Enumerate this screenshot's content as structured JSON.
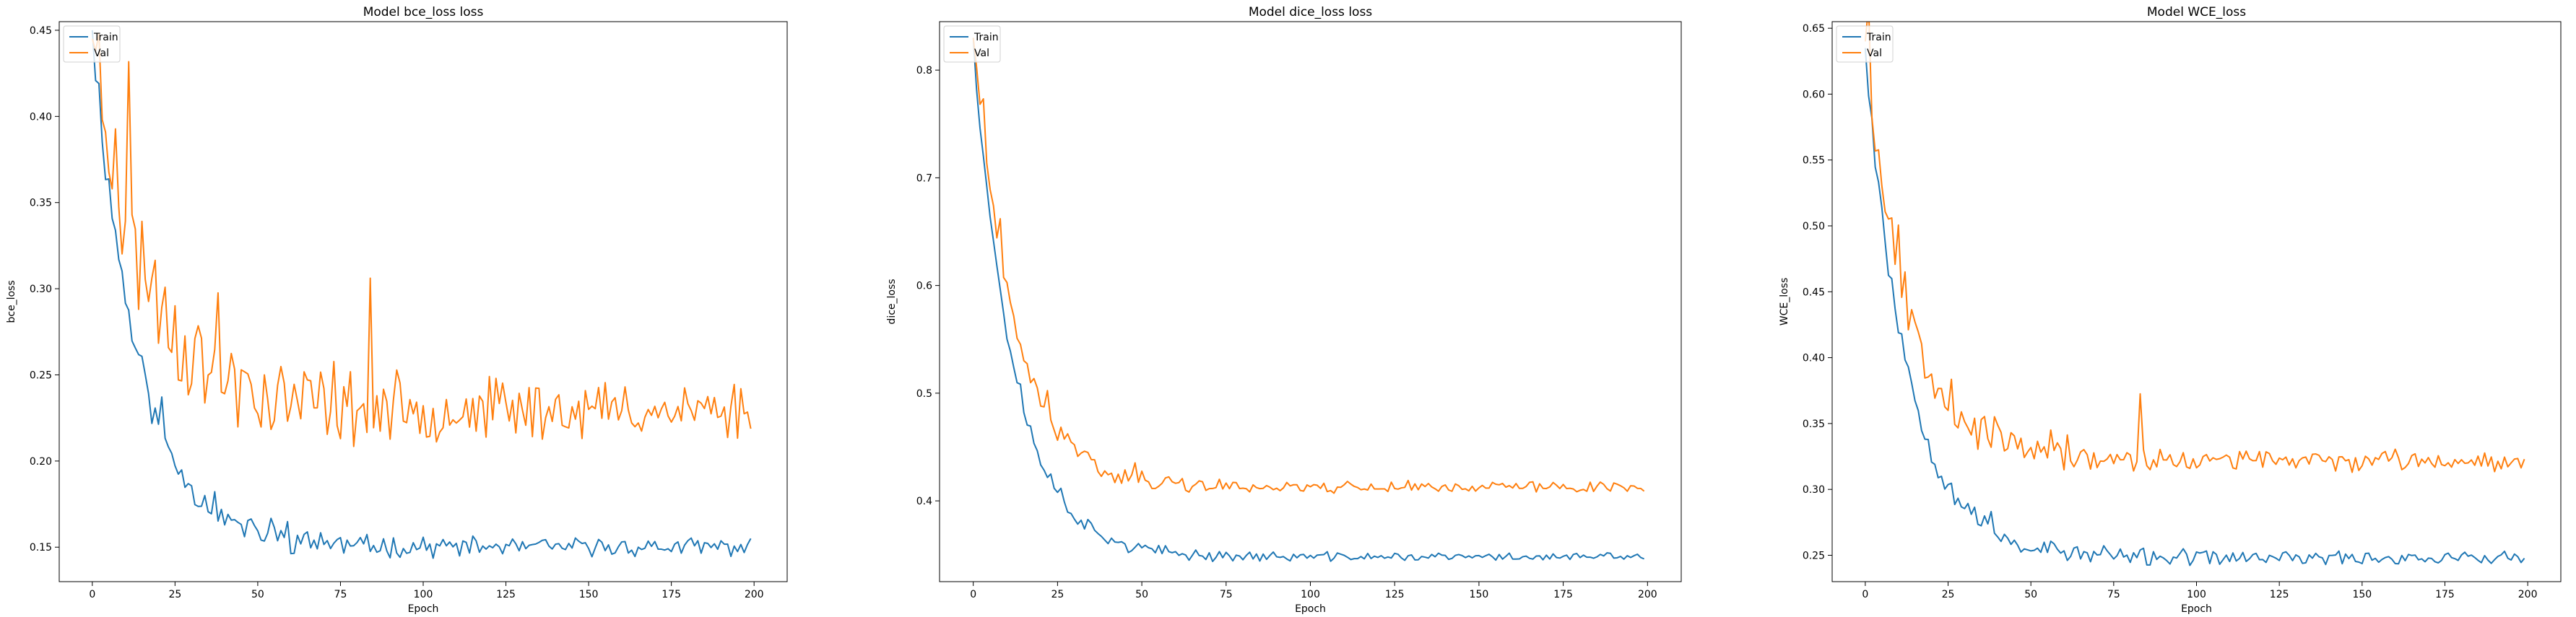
{
  "chart_data": [
    {
      "type": "line",
      "title": "Model bce_loss loss",
      "xlabel": "Epoch",
      "ylabel": "bce_loss",
      "xlim": [
        -10,
        210
      ],
      "ylim": [
        0.13,
        0.455
      ],
      "xticks": [
        0,
        25,
        50,
        75,
        100,
        125,
        150,
        175,
        200
      ],
      "xtick_labels": [
        "0",
        "25",
        "50",
        "75",
        "100",
        "125",
        "150",
        "175",
        "200"
      ],
      "yticks": [
        0.15,
        0.2,
        0.25,
        0.3,
        0.35,
        0.4,
        0.45
      ],
      "ytick_labels": [
        "0.15",
        "0.20",
        "0.25",
        "0.30",
        "0.35",
        "0.40",
        "0.45"
      ],
      "legend": "top-left",
      "series": [
        {
          "name": "Train",
          "color": "#1f77b4",
          "start": 0.45,
          "plateau": 0.15,
          "tau": 14,
          "noise": 0.004,
          "bumps": [
            [
              21,
              0.012
            ],
            [
              37,
              0.015
            ],
            [
              54,
              0.01
            ],
            [
              59,
              0.012
            ],
            [
              69,
              0.008
            ]
          ],
          "seed": 11
        },
        {
          "name": "Val",
          "color": "#ff7f0e",
          "start": 0.445,
          "plateau": 0.23,
          "tau": 16,
          "noise": 0.013,
          "bumps": [
            [
              7,
              0.05
            ],
            [
              11,
              0.06
            ],
            [
              18,
              0.03
            ],
            [
              31,
              0.04
            ],
            [
              38,
              0.03
            ],
            [
              46,
              0.02
            ],
            [
              84,
              0.06
            ],
            [
              73,
              0.03
            ]
          ],
          "seed": 23
        }
      ]
    },
    {
      "type": "line",
      "title": "Model dice_loss loss",
      "xlabel": "Epoch",
      "ylabel": "dice_loss",
      "xlim": [
        -10,
        210
      ],
      "ylim": [
        0.325,
        0.845
      ],
      "xticks": [
        0,
        25,
        50,
        75,
        100,
        125,
        150,
        175,
        200
      ],
      "xtick_labels": [
        "0",
        "25",
        "50",
        "75",
        "100",
        "125",
        "150",
        "175",
        "200"
      ],
      "yticks": [
        0.4,
        0.5,
        0.6,
        0.7,
        0.8
      ],
      "ytick_labels": [
        "0.4",
        "0.5",
        "0.6",
        "0.7",
        "0.8"
      ],
      "legend": "top-left",
      "series": [
        {
          "name": "Train",
          "color": "#1f77b4",
          "start": 0.83,
          "plateau": 0.348,
          "tau": 12,
          "noise": 0.003,
          "bumps": [
            [
              14,
              0.008
            ],
            [
              26,
              0.006
            ],
            [
              41,
              0.005
            ]
          ],
          "seed": 37
        },
        {
          "name": "Val",
          "color": "#ff7f0e",
          "start": 0.83,
          "plateau": 0.413,
          "tau": 12,
          "noise": 0.004,
          "bumps": [
            [
              3,
              0.05
            ],
            [
              8,
              0.02
            ],
            [
              22,
              0.02
            ],
            [
              33,
              0.015
            ],
            [
              48,
              0.012
            ],
            [
              62,
              0.01
            ]
          ],
          "seed": 41
        }
      ]
    },
    {
      "type": "line",
      "title": "Model WCE_loss",
      "xlabel": "Epoch",
      "ylabel": "WCE_loss",
      "xlim": [
        -10,
        210
      ],
      "ylim": [
        0.23,
        0.655
      ],
      "xticks": [
        0,
        25,
        50,
        75,
        100,
        125,
        150,
        175,
        200
      ],
      "xtick_labels": [
        "0",
        "25",
        "50",
        "75",
        "100",
        "125",
        "150",
        "175",
        "200"
      ],
      "yticks": [
        0.25,
        0.3,
        0.35,
        0.4,
        0.45,
        0.5,
        0.55,
        0.6,
        0.65
      ],
      "ytick_labels": [
        "0.25",
        "0.30",
        "0.35",
        "0.40",
        "0.45",
        "0.50",
        "0.55",
        "0.60",
        "0.65"
      ],
      "legend": "top-left",
      "series": [
        {
          "name": "Train",
          "color": "#1f77b4",
          "start": 0.635,
          "plateau": 0.248,
          "tau": 13,
          "noise": 0.004,
          "bumps": [
            [
              31,
              0.01
            ],
            [
              38,
              0.012
            ],
            [
              56,
              0.01
            ],
            [
              72,
              0.008
            ]
          ],
          "seed": 53
        },
        {
          "name": "Val",
          "color": "#ff7f0e",
          "start": 0.64,
          "plateau": 0.322,
          "tau": 13,
          "noise": 0.006,
          "bumps": [
            [
              1,
              0.05
            ],
            [
              10,
              0.025
            ],
            [
              26,
              0.02
            ],
            [
              39,
              0.02
            ],
            [
              56,
              0.02
            ],
            [
              83,
              0.04
            ],
            [
              61,
              0.015
            ]
          ],
          "seed": 67
        }
      ]
    }
  ]
}
